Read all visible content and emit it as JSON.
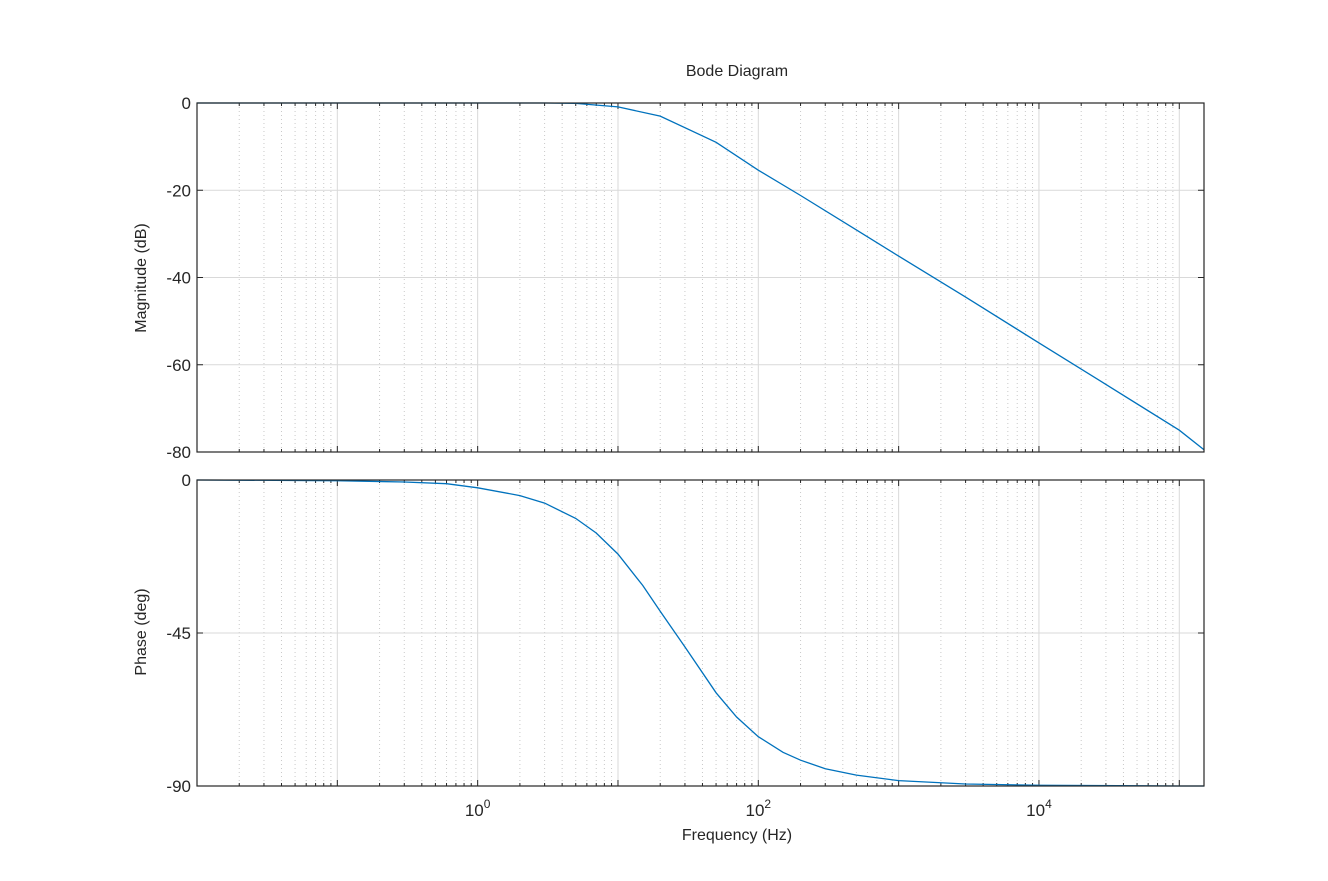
{
  "chart_data": {
    "type": "line",
    "title": "Bode Diagram",
    "xlabel": "Frequency  (Hz)",
    "xscale": "log",
    "xlim": [
      0.01,
      150000
    ],
    "x_ticks": [
      {
        "value": 1,
        "base": "10",
        "exp": "0"
      },
      {
        "value": 100,
        "base": "10",
        "exp": "2"
      },
      {
        "value": 10000,
        "base": "10",
        "exp": "4"
      }
    ],
    "grid": "on",
    "color": "#0072bd",
    "panels": [
      {
        "name": "magnitude",
        "ylabel": "Magnitude (dB)",
        "ylim": [
          -80,
          0
        ],
        "yticks": [
          0,
          -20,
          -40,
          -60,
          -80
        ],
        "series": [
          {
            "x": [
              0.01,
              0.1,
              1,
              3,
              5,
              10,
              20,
              50,
              100,
              200,
              500,
              1000,
              3000,
              10000,
              30000,
              100000,
              150000
            ],
            "values": [
              0,
              0,
              0,
              0,
              -0.1,
              -0.9,
              -3.0,
              -9.0,
              -15.4,
              -21.2,
              -29.1,
              -35.1,
              -44.5,
              -55.0,
              -64.5,
              -75.0,
              -79.5
            ]
          }
        ]
      },
      {
        "name": "phase",
        "ylabel": "Phase (deg)",
        "ylim": [
          -90,
          0
        ],
        "yticks": [
          0,
          -45,
          -90
        ],
        "series": [
          {
            "x": [
              0.01,
              0.1,
              0.3,
              0.6,
              1,
              2,
              3,
              5,
              7,
              10,
              15,
              20,
              30,
              50,
              70,
              100,
              150,
              200,
              300,
              500,
              1000,
              3000,
              10000,
              100000,
              150000
            ],
            "values": [
              0,
              -0.2,
              -0.6,
              -1.1,
              -2.3,
              -4.6,
              -6.8,
              -11.3,
              -15.6,
              -21.8,
              -31.0,
              -38.6,
              -49.1,
              -62.6,
              -69.7,
              -75.5,
              -80.1,
              -82.4,
              -84.9,
              -86.8,
              -88.4,
              -89.4,
              -89.8,
              -90,
              -90
            ]
          }
        ]
      }
    ]
  }
}
